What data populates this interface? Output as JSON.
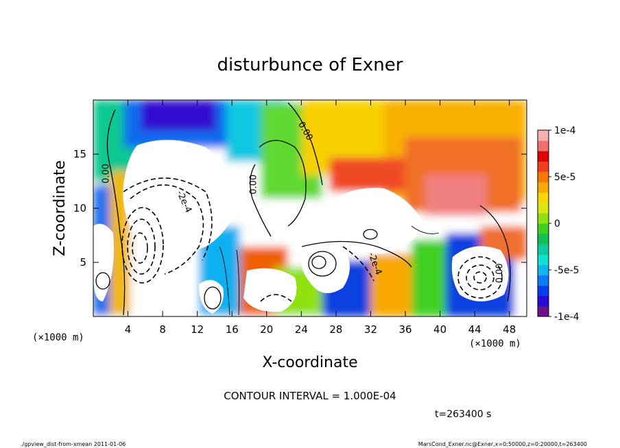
{
  "chart_data": {
    "type": "heatmap",
    "title": "disturbunce of Exner",
    "xlabel": "X-coordinate",
    "ylabel": "Z-coordinate",
    "x_unit": "(×1000 m)",
    "x_unit_right": "(×1000 m)",
    "y_unit": "(×1000 m)",
    "xlim": [
      0,
      50
    ],
    "ylim": [
      0,
      20
    ],
    "xticks": [
      "4",
      "8",
      "12",
      "16",
      "20",
      "24",
      "28",
      "32",
      "36",
      "40",
      "44",
      "48"
    ],
    "xtick_values": [
      4,
      8,
      12,
      16,
      20,
      24,
      28,
      32,
      36,
      40,
      44,
      48
    ],
    "yticks": [
      "5",
      "10",
      "15"
    ],
    "ytick_values": [
      5,
      10,
      15
    ],
    "colorbar": {
      "min": -0.0001,
      "max": 0.0001,
      "labels": [
        "1e-4",
        "5e-5",
        "0",
        "-5e-5",
        "-1e-4"
      ],
      "label_values": [
        0.0001,
        5e-05,
        0,
        -5e-05,
        -0.0001
      ],
      "colors": [
        "#6e0f8c",
        "#2a0ad6",
        "#0a3cf0",
        "#0a7cf5",
        "#10b4f0",
        "#10e0d0",
        "#10c8a0",
        "#10c050",
        "#40d020",
        "#90e010",
        "#d8e810",
        "#f8d800",
        "#f8a800",
        "#f87800",
        "#f04020",
        "#e00000",
        "#f07070",
        "#f8b0b0"
      ]
    },
    "contour_interval_text": "CONTOUR INTERVAL = 1.000E-04",
    "contour_labels": [
      {
        "text": "0.00",
        "x": 1.8,
        "z": 13.2,
        "rot": -90
      },
      {
        "text": "-2e-4",
        "x": 10.2,
        "z": 10.5,
        "rot": 65
      },
      {
        "text": "0.00",
        "x": 18.8,
        "z": 12.2,
        "rot": -90
      },
      {
        "text": "0.00",
        "x": 24.2,
        "z": 17.0,
        "rot": 60
      },
      {
        "text": "-2e-4",
        "x": 32.2,
        "z": 4.8,
        "rot": 70
      },
      {
        "text": "0.00",
        "x": 47.2,
        "z": 4.0,
        "rot": -90
      }
    ],
    "time_label": "t=263400 s"
  },
  "footer": {
    "left": "./gpview_dist-from-xmean  2011-01-06",
    "right": "MarsCond_Exner.nc@Exner,x=0:50000,z=0:20000,t=263400"
  }
}
